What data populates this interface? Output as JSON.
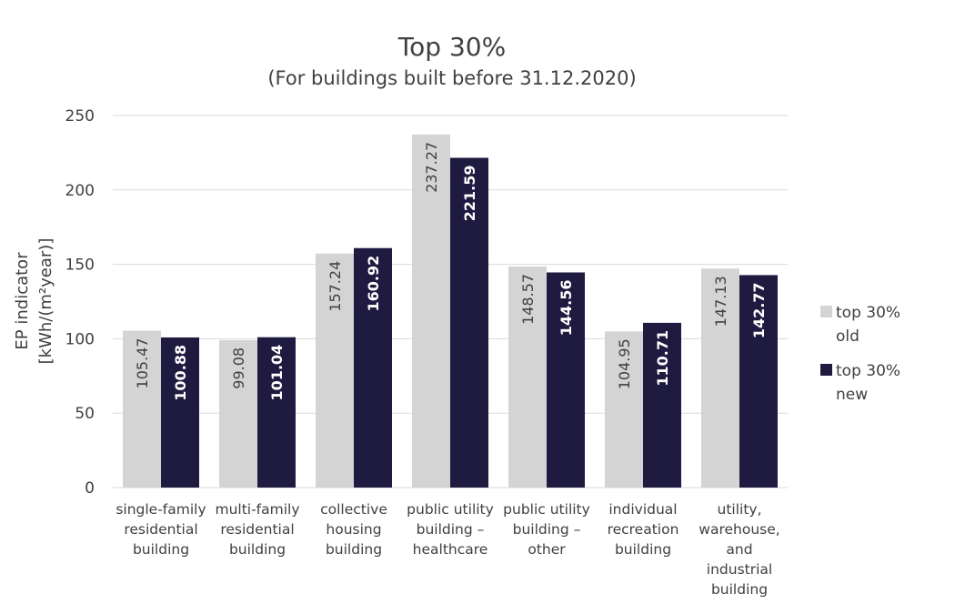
{
  "chart_data": {
    "type": "bar",
    "title": "Top 30%",
    "subtitle": "(For buildings built before 31.12.2020)",
    "ylabel_line1": "EP indicator",
    "ylabel_line2": "[kWh/(m²year)]",
    "xlabel": "",
    "ylim": [
      0,
      250
    ],
    "yticks": [
      "0",
      "50",
      "100",
      "150",
      "200",
      "250"
    ],
    "grid": true,
    "legend_position": "right",
    "categories": [
      [
        "single-family",
        "residential",
        "building"
      ],
      [
        "multi-family",
        "residential",
        "building"
      ],
      [
        "collective",
        "housing",
        "building"
      ],
      [
        "public utility",
        "building –",
        "healthcare"
      ],
      [
        "public utility",
        "building –",
        "other"
      ],
      [
        "individual",
        "recreation",
        "building"
      ],
      [
        "utility,",
        "warehouse,",
        "and",
        "industrial",
        "building"
      ]
    ],
    "series": [
      {
        "name": "top 30% old",
        "legend_lines": [
          "top 30%",
          "old"
        ],
        "color": "#d4d4d4",
        "values": [
          105.47,
          99.08,
          157.24,
          237.27,
          148.57,
          104.95,
          147.13
        ],
        "labels": [
          "105.47",
          "99.08",
          "157.24",
          "237.27",
          "148.57",
          "104.95",
          "147.13"
        ]
      },
      {
        "name": "top 30% new",
        "legend_lines": [
          "top 30%",
          "new"
        ],
        "color": "#1f1a40",
        "values": [
          100.88,
          101.04,
          160.92,
          221.59,
          144.56,
          110.71,
          142.77
        ],
        "labels": [
          "100.88",
          "101.04",
          "160.92",
          "221.59",
          "144.56",
          "110.71",
          "142.77"
        ]
      }
    ]
  }
}
